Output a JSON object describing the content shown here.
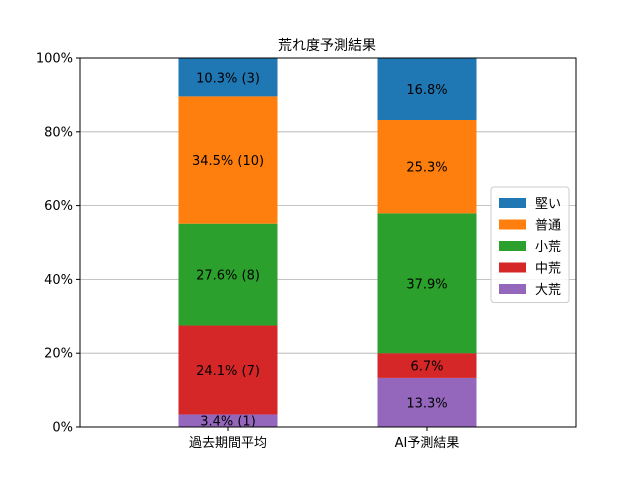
{
  "chart_data": {
    "type": "bar",
    "stacked": true,
    "title": "荒れ度予測結果",
    "xlabel": "",
    "ylabel": "",
    "categories": [
      "過去期間平均",
      "AI予測結果"
    ],
    "ylim": [
      0,
      100
    ],
    "yticks": [
      0,
      20,
      40,
      60,
      80,
      100
    ],
    "ytick_labels": [
      "0%",
      "20%",
      "40%",
      "60%",
      "80%",
      "100%"
    ],
    "grid": "horizontal",
    "legend_position": "right",
    "series": [
      {
        "name": "大荒",
        "color": "#9467bd",
        "values": [
          3.4,
          13.3
        ],
        "labels": [
          "3.4% (1)",
          "13.3%"
        ]
      },
      {
        "name": "中荒",
        "color": "#d62728",
        "values": [
          24.1,
          6.7
        ],
        "labels": [
          "24.1% (7)",
          "6.7%"
        ]
      },
      {
        "name": "小荒",
        "color": "#2ca02c",
        "values": [
          27.6,
          37.9
        ],
        "labels": [
          "27.6% (8)",
          "37.9%"
        ]
      },
      {
        "name": "普通",
        "color": "#ff7f0e",
        "values": [
          34.5,
          25.3
        ],
        "labels": [
          "34.5% (10)",
          "25.3%"
        ]
      },
      {
        "name": "堅い",
        "color": "#1f77b4",
        "values": [
          10.3,
          16.8
        ],
        "labels": [
          "10.3% (3)",
          "16.8%"
        ]
      }
    ],
    "legend_order": [
      "堅い",
      "普通",
      "小荒",
      "中荒",
      "大荒"
    ]
  }
}
